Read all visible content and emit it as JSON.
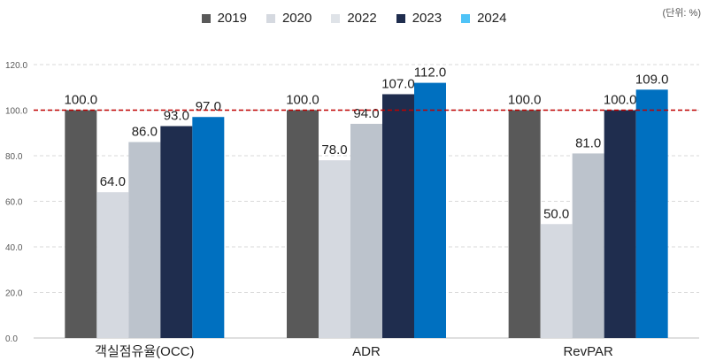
{
  "chart_data": {
    "type": "bar",
    "unit_note": "(단위: %)",
    "categories": [
      "객실점유율(OCC)",
      "ADR",
      "RevPAR"
    ],
    "series": [
      {
        "name": "2019",
        "color": "#595959",
        "values": [
          100.0,
          100.0,
          100.0
        ]
      },
      {
        "name": "2020",
        "color": "#d5d9e0",
        "values": [
          64.0,
          78.0,
          50.0
        ]
      },
      {
        "name": "2022",
        "color": "#bcc3cc",
        "legend_color": "#dfe3e8",
        "values": [
          86.0,
          94.0,
          81.0
        ]
      },
      {
        "name": "2023",
        "color": "#1f2d4e",
        "values": [
          93.0,
          107.0,
          100.0
        ]
      },
      {
        "name": "2024",
        "color": "#0070c0",
        "legend_color": "#4fc3f7",
        "values": [
          97.0,
          112.0,
          109.0
        ]
      }
    ],
    "legend_labels": [
      "2019",
      "2020",
      "2022",
      "2023",
      "2024"
    ],
    "yticks": [
      "0.0",
      "20.0",
      "40.0",
      "60.0",
      "80.0",
      "100.0",
      "120.0"
    ],
    "ylim": [
      0,
      120
    ],
    "reference_line": 100,
    "grid": true,
    "legend_position": "top-center"
  }
}
